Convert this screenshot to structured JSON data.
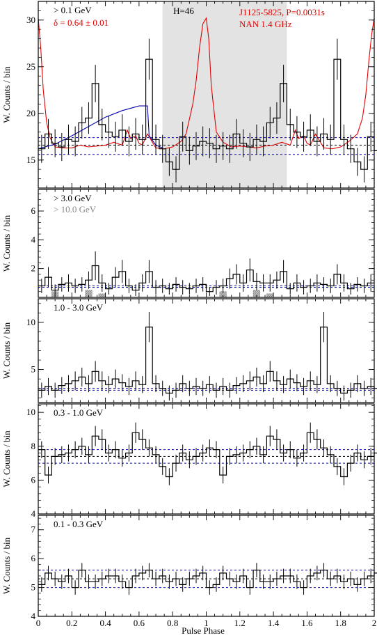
{
  "figure": {
    "x_axis_label": "Pulse Phase",
    "y_axis_label": "W. Counts / bin",
    "x_tick_labels": [
      "0",
      "0.2",
      "0.4",
      "0.6",
      "0.8",
      "1",
      "1.2",
      "1.4",
      "1.6",
      "1.8",
      "2"
    ]
  },
  "colors": {
    "histogram": "#000000",
    "radio": "#e00000",
    "model": "#0000aa",
    "background_line": "#0000cc",
    "offpulse_band": "#e3e3e3",
    "hatched": "#9a9a9a"
  },
  "chart_data": [
    {
      "type": "histogram",
      "panel": "> 0.1 GeV",
      "labels": {
        "energy": "> 0.1 GeV",
        "delta": "δ = 0.64 ± 0.01",
        "htest": "H=46",
        "pulsar": "J1125-5825, P=0.0031s",
        "radio": "NAN 1.4 GHz"
      },
      "x_range": [
        0,
        2
      ],
      "ylim": [
        12,
        32
      ],
      "y_ticks": [
        15,
        20,
        25,
        30
      ],
      "bin_width": 0.04,
      "values": [
        16.2,
        17.8,
        16.8,
        16.4,
        17.2,
        17.0,
        19.0,
        19.5,
        23.2,
        18.8,
        18.0,
        17.5,
        18.2,
        17.0,
        17.8,
        17.2,
        25.8,
        17.2,
        16.2,
        14.8,
        14.0,
        17.5,
        16.0,
        16.5,
        17.0,
        16.8,
        16.2,
        16.5
      ],
      "errors": [
        1.5,
        1.6,
        1.5,
        1.5,
        1.6,
        1.6,
        1.7,
        1.7,
        2.0,
        1.7,
        1.7,
        1.6,
        1.7,
        1.6,
        1.7,
        1.6,
        2.2,
        1.6,
        1.5,
        1.5,
        1.4,
        1.6,
        1.5,
        1.5,
        1.6,
        1.6,
        1.5,
        1.5
      ],
      "offpulse_phase": [
        0.74,
        1.48
      ],
      "background_levels": [
        15.6,
        16.6,
        17.4
      ],
      "radio_profile": {
        "phase": [
          0.0,
          0.015,
          0.03,
          0.05,
          0.07,
          0.1,
          0.15,
          0.2,
          0.25,
          0.3,
          0.35,
          0.4,
          0.45,
          0.5,
          0.53,
          0.55,
          0.58,
          0.6,
          0.62,
          0.65,
          0.7,
          0.75,
          0.8,
          0.85,
          0.88,
          0.92,
          0.94,
          0.96,
          0.98,
          1.0,
          1.015,
          1.03,
          1.06,
          1.1,
          1.15,
          1.2,
          1.25,
          1.3,
          1.35,
          1.4,
          1.45,
          1.5,
          1.53,
          1.55,
          1.58,
          1.6,
          1.62,
          1.65,
          1.7,
          1.75,
          1.8,
          1.85,
          1.9,
          1.93,
          1.95,
          1.97,
          1.985,
          2.0
        ],
        "values": [
          30.2,
          27.0,
          22.5,
          19.0,
          17.4,
          16.4,
          16.3,
          16.3,
          16.6,
          16.4,
          16.5,
          16.6,
          16.9,
          16.6,
          18.2,
          17.3,
          17.6,
          16.8,
          16.6,
          17.8,
          16.3,
          16.2,
          16.4,
          17.0,
          17.8,
          21.0,
          23.5,
          27.0,
          29.6,
          30.2,
          28.0,
          23.0,
          18.0,
          16.9,
          16.4,
          16.5,
          16.4,
          16.3,
          16.5,
          16.6,
          16.9,
          16.6,
          18.2,
          17.3,
          17.6,
          16.8,
          16.6,
          17.8,
          16.3,
          16.2,
          16.4,
          17.0,
          17.8,
          19.5,
          22.0,
          26.0,
          28.5,
          30.2
        ]
      },
      "model_curve": {
        "phase": [
          0.0,
          0.1,
          0.2,
          0.3,
          0.4,
          0.5,
          0.6,
          0.65,
          0.66,
          0.7,
          0.74
        ],
        "values": [
          16.2,
          16.7,
          17.6,
          18.6,
          19.6,
          20.3,
          20.8,
          20.8,
          17.6,
          16.6,
          16.3
        ]
      }
    },
    {
      "type": "histogram",
      "panel": "> 3.0 GeV",
      "labels": {
        "energy": "> 3.0 GeV",
        "energy_secondary": "> 10.0 GeV"
      },
      "x_range": [
        0,
        2
      ],
      "ylim": [
        0,
        7.5
      ],
      "y_ticks": [
        2,
        4,
        6
      ],
      "y_tick_labels": [
        "2",
        "4",
        "6"
      ],
      "bin_width": 0.04,
      "values": [
        0.8,
        1.4,
        0.5,
        0.9,
        1.0,
        0.8,
        0.9,
        1.2,
        2.2,
        1.0,
        0.6,
        1.4,
        1.8,
        0.8,
        0.5,
        1.0,
        1.8,
        0.7,
        0.8,
        0.6,
        0.9,
        0.7,
        0.6,
        0.8,
        0.9,
        0.4,
        0.7,
        0.8,
        1.3,
        1.6,
        1.0,
        1.9,
        1.1,
        1.0,
        1.0,
        1.2,
        1.8,
        0.6,
        1.0,
        0.7,
        0.8,
        1.0,
        0.9,
        0.8,
        1.6,
        1.0,
        0.6,
        0.9,
        0.8,
        1.0
      ],
      "errors": [
        0.5,
        0.7,
        0.4,
        0.5,
        0.6,
        0.5,
        0.5,
        0.6,
        1.0,
        0.6,
        0.4,
        0.7,
        0.8,
        0.5,
        0.4,
        0.6,
        0.8,
        0.5,
        0.5,
        0.4,
        0.5,
        0.5,
        0.4,
        0.5,
        0.5,
        0.3,
        0.5,
        0.5,
        0.7,
        0.7,
        0.6,
        0.8,
        0.6,
        0.6,
        0.6,
        0.6,
        0.8,
        0.4,
        0.6,
        0.5,
        0.5,
        0.6,
        0.5,
        0.5,
        0.7,
        0.6,
        0.4,
        0.5,
        0.5,
        0.6
      ],
      "background_levels": [
        0.7,
        0.8
      ],
      "hatched_bins": [
        {
          "start": 0.08,
          "end": 0.12,
          "value": 0.4
        },
        {
          "start": 0.28,
          "end": 0.32,
          "value": 0.5
        },
        {
          "start": 0.36,
          "end": 0.4,
          "value": 0.25
        },
        {
          "start": 1.08,
          "end": 1.12,
          "value": 0.4
        },
        {
          "start": 1.28,
          "end": 1.32,
          "value": 0.5
        },
        {
          "start": 1.36,
          "end": 1.4,
          "value": 0.25
        }
      ]
    },
    {
      "type": "histogram",
      "panel": "1.0 - 3.0 GeV",
      "labels": {
        "energy": "1.0 - 3.0 GeV"
      },
      "x_range": [
        0,
        2
      ],
      "ylim": [
        1.5,
        12.5
      ],
      "y_ticks": [
        5,
        10
      ],
      "bin_width": 0.04,
      "values": [
        2.8,
        3.2,
        2.8,
        3.3,
        3.5,
        3.8,
        4.2,
        3.5,
        4.8,
        3.8,
        3.4,
        4.0,
        3.6,
        3.2,
        3.8,
        3.4,
        9.5,
        3.5,
        3.0,
        2.5,
        2.8,
        3.5,
        3.0,
        3.2,
        3.0,
        3.4
      ],
      "errors": [
        0.8,
        0.9,
        0.8,
        0.9,
        0.9,
        1.0,
        1.0,
        0.9,
        1.1,
        1.0,
        0.9,
        1.0,
        0.9,
        0.9,
        1.0,
        0.9,
        1.6,
        0.9,
        0.8,
        0.8,
        0.8,
        0.9,
        0.8,
        0.9,
        0.8,
        0.9
      ],
      "background_levels": [
        2.8,
        3.0
      ]
    },
    {
      "type": "histogram",
      "panel": "0.3 - 1.0 GeV",
      "labels": {
        "energy": "0.3 - 1.0 GeV"
      },
      "x_range": [
        0,
        2
      ],
      "ylim": [
        4,
        10.5
      ],
      "y_ticks": [
        4,
        6,
        8,
        10
      ],
      "bin_width": 0.04,
      "values": [
        7.8,
        6.3,
        7.4,
        7.5,
        7.6,
        7.8,
        8.0,
        7.5,
        8.6,
        8.4,
        7.6,
        7.8,
        7.3,
        7.6,
        8.8,
        8.4,
        7.9,
        7.5,
        6.8,
        6.2,
        7.0,
        7.6,
        7.2,
        7.4,
        7.6,
        7.9
      ],
      "errors": [
        0.5,
        0.5,
        0.5,
        0.5,
        0.5,
        0.5,
        0.5,
        0.5,
        0.6,
        0.6,
        0.5,
        0.5,
        0.5,
        0.5,
        0.6,
        0.6,
        0.5,
        0.5,
        0.5,
        0.5,
        0.5,
        0.5,
        0.5,
        0.5,
        0.5,
        0.5
      ],
      "background_levels": [
        7.0,
        7.4,
        7.8
      ]
    },
    {
      "type": "histogram",
      "panel": "0.1 - 0.3 GeV",
      "labels": {
        "energy": "0.1 - 0.3 GeV"
      },
      "x_range": [
        0,
        2
      ],
      "ylim": [
        4,
        7.5
      ],
      "y_ticks": [
        4,
        5,
        6,
        7
      ],
      "bin_width": 0.04,
      "values": [
        5.1,
        5.5,
        5.3,
        5.2,
        5.4,
        5.0,
        5.6,
        5.2,
        5.2,
        5.3,
        5.4,
        5.4,
        5.2,
        5.0,
        5.4,
        5.5,
        5.6,
        5.3,
        5.4,
        5.2,
        5.3,
        5.1,
        5.3,
        5.4,
        5.5,
        5.0
      ],
      "errors": [
        0.25,
        0.25,
        0.25,
        0.25,
        0.25,
        0.25,
        0.25,
        0.25,
        0.25,
        0.25,
        0.25,
        0.25,
        0.25,
        0.25,
        0.25,
        0.25,
        0.25,
        0.25,
        0.25,
        0.25,
        0.25,
        0.25,
        0.25,
        0.25,
        0.25,
        0.25
      ],
      "background_levels": [
        5.0,
        5.3,
        5.6
      ]
    }
  ]
}
